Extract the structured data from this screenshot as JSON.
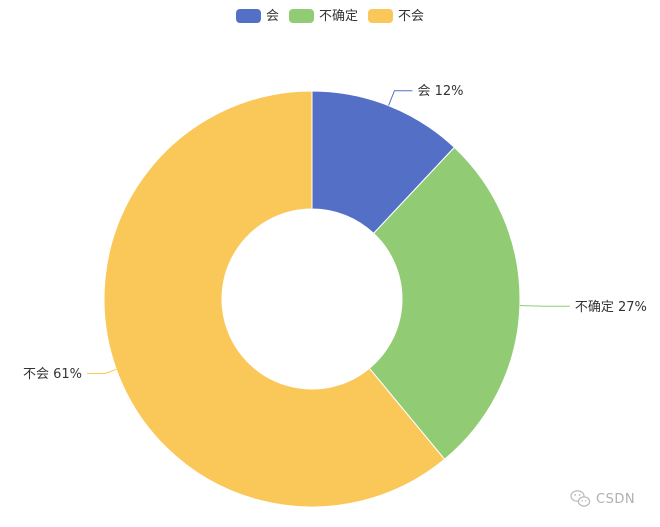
{
  "chart_data": {
    "type": "pie",
    "variant": "donut",
    "legend_position": "top-center",
    "slices": [
      {
        "name": "会",
        "value": 12,
        "label": "会 12%",
        "color": "#5470c6"
      },
      {
        "name": "不确定",
        "value": 27,
        "label": "不确定 27%",
        "color": "#91cc75"
      },
      {
        "name": "不会",
        "value": 61,
        "label": "不会 61%",
        "color": "#fac858"
      }
    ]
  },
  "watermark": {
    "text": "CSDN",
    "icon": "wechat-icon",
    "color": "#b0b0b0"
  }
}
